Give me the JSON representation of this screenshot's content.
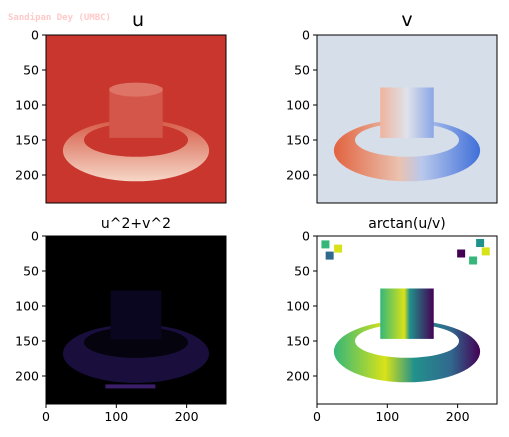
{
  "watermark": "Sandipan Dey (UMBC)",
  "chart_data": [
    {
      "type": "heatmap",
      "title": "u",
      "colormap": "RdBu-like",
      "xticks": [],
      "yticks": [
        0,
        50,
        100,
        150,
        200
      ],
      "xlim": [
        0,
        256
      ],
      "ylim": [
        0,
        240
      ],
      "background_color": "#c8362e"
    },
    {
      "type": "heatmap",
      "title": "v",
      "colormap": "coolwarm-like",
      "xticks": [],
      "yticks": [
        0,
        50,
        100,
        150,
        200
      ],
      "xlim": [
        0,
        256
      ],
      "ylim": [
        0,
        240
      ],
      "background_color": "#d6dee9"
    },
    {
      "type": "heatmap",
      "title": "u^2+v^2",
      "colormap": "magma-like",
      "xticks": [],
      "yticks": [
        0,
        50,
        100,
        150,
        200
      ],
      "xlim": [
        0,
        256
      ],
      "ylim": [
        0,
        240
      ],
      "background_color": "#000000"
    },
    {
      "type": "heatmap",
      "title": "arctan(u/v)",
      "colormap": "viridis-like",
      "xticks": [
        0,
        100,
        200
      ],
      "yticks": [
        0,
        50,
        100,
        150,
        200
      ],
      "xlim": [
        0,
        256
      ],
      "ylim": [
        0,
        240
      ],
      "background_color": "#ffffff"
    }
  ],
  "bottom_left_xticks": [
    0,
    100,
    200
  ],
  "colors": {
    "u_base": "#c8362e",
    "u_light": "#f6d7c7",
    "v_base": "#d6dee9",
    "v_red": "#e8896b",
    "v_blue": "#3f6fd9",
    "viridis_yellow": "#d8e219",
    "viridis_green": "#35b779",
    "viridis_teal": "#21918c",
    "viridis_blue": "#31688e",
    "viridis_purple": "#440154",
    "magma_dim": "#1d1147"
  }
}
